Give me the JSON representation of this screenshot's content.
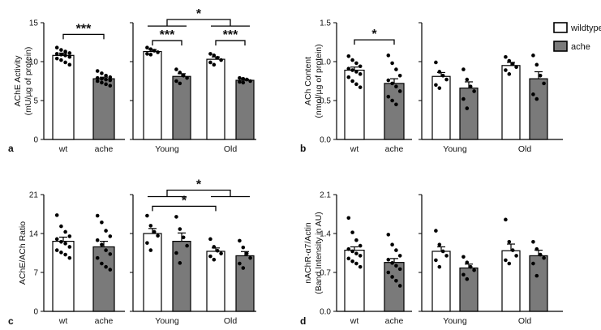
{
  "colors": {
    "wildtype": "#ffffff",
    "ache": "#7a7a7a",
    "stroke": "#000000",
    "dot": "#000000"
  },
  "legend": {
    "position": "top-right",
    "items": [
      {
        "label": "wildtype",
        "fill": "#ffffff"
      },
      {
        "label": "ache",
        "fill": "#7a7a7a"
      }
    ]
  },
  "chart_data": [
    {
      "id": "a",
      "panel_label": "a",
      "type": "bar",
      "ylabel_line1": "AChE Activity",
      "ylabel_line2": "(mU/µg of protein)",
      "ylim": [
        0,
        15
      ],
      "yticks": [
        "0",
        "5",
        "10",
        "15"
      ],
      "ytick_values": [
        0,
        5,
        10,
        15
      ],
      "left": {
        "categories": [
          "wt",
          "ache"
        ],
        "bars": [
          {
            "mean": 10.8,
            "sem": 0.3,
            "fill": "wildtype",
            "points": [
              11.8,
              11.5,
              11.3,
              11.1,
              11.0,
              10.9,
              10.8,
              10.6,
              10.4,
              10.2,
              9.9,
              9.6
            ]
          },
          {
            "mean": 7.8,
            "sem": 0.2,
            "fill": "ache",
            "points": [
              8.8,
              8.5,
              8.2,
              8.0,
              7.9,
              7.8,
              7.7,
              7.6,
              7.5,
              7.3,
              7.1,
              6.9
            ]
          }
        ],
        "significance": [
          {
            "from": 0,
            "to": 1,
            "y": 13.5,
            "label": "***"
          }
        ]
      },
      "right": {
        "categories": [
          "Young",
          "Old"
        ],
        "bars": [
          {
            "mean": 11.3,
            "sem": 0.25,
            "fill": "wildtype",
            "points": [
              11.8,
              11.6,
              11.4,
              11.2,
              11.0,
              10.9
            ]
          },
          {
            "mean": 8.1,
            "sem": 0.35,
            "fill": "ache",
            "points": [
              9.0,
              8.6,
              8.2,
              7.9,
              7.5,
              7.2
            ]
          },
          {
            "mean": 10.3,
            "sem": 0.3,
            "fill": "wildtype",
            "points": [
              11.0,
              10.8,
              10.5,
              10.2,
              9.9,
              9.6
            ]
          },
          {
            "mean": 7.6,
            "sem": 0.15,
            "fill": "ache",
            "points": [
              7.9,
              7.8,
              7.7,
              7.5,
              7.4,
              7.3
            ]
          }
        ],
        "significance": [
          {
            "from": 0,
            "to": 1,
            "y": 12.7,
            "label": "***"
          },
          {
            "from": 2,
            "to": 3,
            "y": 12.7,
            "label": "***"
          }
        ],
        "group_significance": [
          {
            "group1": [
              0,
              1
            ],
            "group2": [
              2,
              3
            ],
            "y": 15.4,
            "label": "*"
          }
        ]
      }
    },
    {
      "id": "b",
      "panel_label": "b",
      "type": "bar",
      "ylabel_line1": "ACh Content",
      "ylabel_line2": "(nmol/µg of protein)",
      "ylim": [
        0,
        1.5
      ],
      "yticks": [
        "0.0",
        "0.5",
        "1.0",
        "1.5"
      ],
      "ytick_values": [
        0,
        0.5,
        1.0,
        1.5
      ],
      "left": {
        "categories": [
          "wt",
          "ache"
        ],
        "bars": [
          {
            "mean": 0.89,
            "sem": 0.04,
            "fill": "wildtype",
            "points": [
              1.07,
              1.02,
              0.98,
              0.94,
              0.91,
              0.89,
              0.87,
              0.84,
              0.8,
              0.75,
              0.71,
              0.67
            ]
          },
          {
            "mean": 0.72,
            "sem": 0.06,
            "fill": "ache",
            "points": [
              1.08,
              0.98,
              0.9,
              0.82,
              0.76,
              0.72,
              0.68,
              0.62,
              0.55,
              0.5,
              0.45
            ]
          }
        ],
        "significance": [
          {
            "from": 0,
            "to": 1,
            "y": 1.28,
            "label": "*"
          }
        ]
      },
      "right": {
        "categories": [
          "Young",
          "Old"
        ],
        "bars": [
          {
            "mean": 0.81,
            "sem": 0.05,
            "fill": "wildtype",
            "points": [
              0.99,
              0.87,
              0.82,
              0.77,
              0.7,
              0.66
            ]
          },
          {
            "mean": 0.66,
            "sem": 0.08,
            "fill": "ache",
            "points": [
              0.9,
              0.77,
              0.68,
              0.62,
              0.52,
              0.4
            ]
          },
          {
            "mean": 0.95,
            "sem": 0.04,
            "fill": "wildtype",
            "points": [
              1.06,
              1.01,
              0.97,
              0.93,
              0.89,
              0.84
            ]
          },
          {
            "mean": 0.78,
            "sem": 0.09,
            "fill": "ache",
            "points": [
              1.08,
              0.96,
              0.82,
              0.72,
              0.58,
              0.52
            ]
          }
        ],
        "significance": [],
        "group_significance": []
      }
    },
    {
      "id": "c",
      "panel_label": "c",
      "type": "bar",
      "ylabel_line1": "AChE/ACh Ratio",
      "ylabel_line2": "",
      "ylim": [
        0,
        21
      ],
      "yticks": [
        "0",
        "7",
        "14",
        "21"
      ],
      "ytick_values": [
        0,
        7,
        14,
        21
      ],
      "left": {
        "categories": [
          "wt",
          "ache"
        ],
        "bars": [
          {
            "mean": 12.6,
            "sem": 0.75,
            "fill": "wildtype",
            "points": [
              17.3,
              15.3,
              14.3,
              13.5,
              13.0,
              12.5,
              12.2,
              11.6,
              11.0,
              10.6,
              10.2,
              9.6
            ]
          },
          {
            "mean": 11.6,
            "sem": 1.0,
            "fill": "ache",
            "points": [
              17.2,
              16.0,
              14.5,
              13.5,
              12.8,
              12.0,
              11.0,
              10.3,
              9.6,
              8.6,
              8.0,
              7.5
            ]
          }
        ],
        "significance": []
      },
      "right": {
        "categories": [
          "Young",
          "Old"
        ],
        "bars": [
          {
            "mean": 14.0,
            "sem": 0.9,
            "fill": "wildtype",
            "points": [
              17.2,
              15.4,
              14.3,
              13.6,
              12.3,
              11.0
            ]
          },
          {
            "mean": 12.6,
            "sem": 1.5,
            "fill": "ache",
            "points": [
              17.0,
              14.8,
              13.3,
              11.8,
              10.5,
              8.7
            ]
          },
          {
            "mean": 10.8,
            "sem": 0.6,
            "fill": "wildtype",
            "points": [
              13.0,
              11.6,
              10.9,
              10.4,
              9.9,
              9.3
            ]
          },
          {
            "mean": 10.0,
            "sem": 0.75,
            "fill": "ache",
            "points": [
              12.7,
              11.5,
              10.4,
              9.6,
              8.6,
              7.8
            ]
          }
        ],
        "significance": [
          {
            "from": 0,
            "to": 2,
            "y": 18.9,
            "label": "*"
          }
        ],
        "group_significance": [
          {
            "group1": [
              0,
              1
            ],
            "group2": [
              2,
              3
            ],
            "y": 21.8,
            "label": "*"
          }
        ]
      }
    },
    {
      "id": "d",
      "panel_label": "d",
      "type": "bar",
      "ylabel_line1": "nAChR-α7/Actin",
      "ylabel_line2": "(Band Intensity in AU)",
      "ylim": [
        0,
        2.1
      ],
      "yticks": [
        "0.0",
        "0.7",
        "1.4",
        "2.1"
      ],
      "ytick_values": [
        0,
        0.7,
        1.4,
        2.1
      ],
      "left": {
        "categories": [
          "wt",
          "ache"
        ],
        "bars": [
          {
            "mean": 1.1,
            "sem": 0.06,
            "fill": "wildtype",
            "points": [
              1.68,
              1.42,
              1.28,
              1.18,
              1.12,
              1.08,
              1.04,
              1.0,
              0.95,
              0.9,
              0.86,
              0.8
            ]
          },
          {
            "mean": 0.88,
            "sem": 0.07,
            "fill": "ache",
            "points": [
              1.38,
              1.2,
              1.1,
              1.0,
              0.93,
              0.87,
              0.82,
              0.76,
              0.7,
              0.62,
              0.55,
              0.46
            ]
          }
        ],
        "significance": []
      },
      "right": {
        "categories": [
          "Young",
          "Old"
        ],
        "bars": [
          {
            "mean": 1.08,
            "sem": 0.08,
            "fill": "wildtype",
            "points": [
              1.45,
              1.2,
              1.08,
              1.0,
              0.92,
              0.8
            ]
          },
          {
            "mean": 0.78,
            "sem": 0.07,
            "fill": "ache",
            "points": [
              0.98,
              0.88,
              0.8,
              0.74,
              0.66,
              0.58
            ]
          },
          {
            "mean": 1.09,
            "sem": 0.12,
            "fill": "wildtype",
            "points": [
              1.65,
              1.25,
              1.1,
              1.0,
              0.92,
              0.86
            ]
          },
          {
            "mean": 1.0,
            "sem": 0.1,
            "fill": "ache",
            "points": [
              1.25,
              1.12,
              1.02,
              0.96,
              0.86,
              0.64
            ]
          }
        ],
        "significance": [],
        "group_significance": []
      }
    }
  ]
}
